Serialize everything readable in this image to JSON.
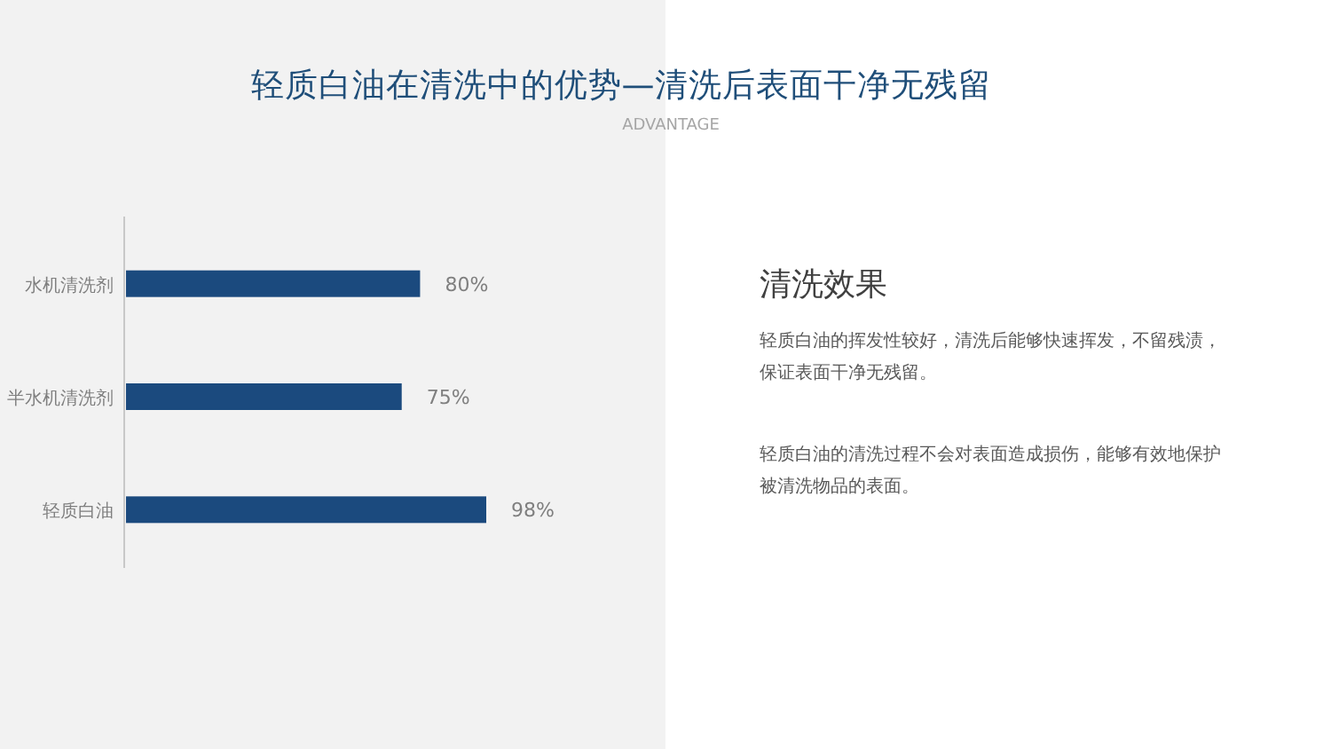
{
  "chart_data": {
    "type": "bar",
    "title": "轻质白油在清洗中的优势—清洗后表面干净无残留",
    "subtitle": "ADVANTAGE",
    "orientation": "horizontal",
    "categories": [
      "水机清洗剂",
      "半水机清洗剂",
      "轻质白油"
    ],
    "values": [
      80,
      75,
      98
    ],
    "value_labels": [
      "80%",
      "75%",
      "98%"
    ],
    "color": "#1b4a7e",
    "annotations": [
      "清洗效果",
      "轻质白油的挥发性较好，清洗后能够快速挥发，不留残渍，保证表面干净无残留。",
      "轻质白油的清洗过程不会对表面造成损伤，能够有效地保护被清洗物品的表面。"
    ]
  }
}
